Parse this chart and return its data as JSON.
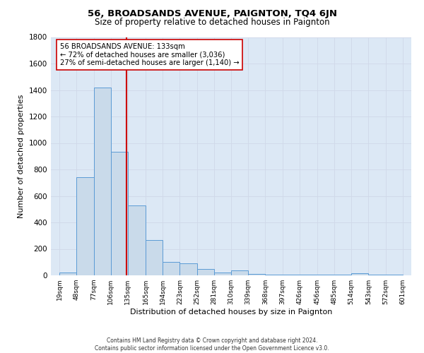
{
  "title": "56, BROADSANDS AVENUE, PAIGNTON, TQ4 6JN",
  "subtitle": "Size of property relative to detached houses in Paignton",
  "xlabel": "Distribution of detached houses by size in Paignton",
  "ylabel": "Number of detached properties",
  "footer_line1": "Contains HM Land Registry data © Crown copyright and database right 2024.",
  "footer_line2": "Contains public sector information licensed under the Open Government Licence v3.0.",
  "bin_edges": [
    19,
    48,
    77,
    106,
    135,
    165,
    194,
    223,
    252,
    281,
    310,
    339,
    368,
    397,
    426,
    456,
    485,
    514,
    543,
    572,
    601
  ],
  "bar_heights": [
    20,
    740,
    1420,
    935,
    530,
    265,
    100,
    90,
    50,
    20,
    40,
    10,
    5,
    5,
    5,
    5,
    5,
    15,
    5,
    5
  ],
  "bar_color": "#c9daea",
  "bar_edge_color": "#5b9bd5",
  "tick_labels": [
    "19sqm",
    "48sqm",
    "77sqm",
    "106sqm",
    "135sqm",
    "165sqm",
    "194sqm",
    "223sqm",
    "252sqm",
    "281sqm",
    "310sqm",
    "339sqm",
    "368sqm",
    "397sqm",
    "426sqm",
    "456sqm",
    "485sqm",
    "514sqm",
    "543sqm",
    "572sqm",
    "601sqm"
  ],
  "vline_x": 133,
  "vline_color": "#cc0000",
  "annotation_text_line1": "56 BROADSANDS AVENUE: 133sqm",
  "annotation_text_line2": "← 72% of detached houses are smaller (3,036)",
  "annotation_text_line3": "27% of semi-detached houses are larger (1,140) →",
  "ylim": [
    0,
    1800
  ],
  "yticks": [
    0,
    200,
    400,
    600,
    800,
    1000,
    1200,
    1400,
    1600,
    1800
  ],
  "grid_color": "#d0d8e8",
  "background_color": "#dce8f5",
  "title_fontsize": 9.5,
  "subtitle_fontsize": 8.5
}
